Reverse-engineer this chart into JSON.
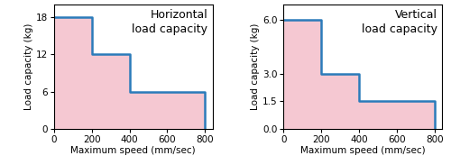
{
  "charts": [
    {
      "title": "Horizontal\nload capacity",
      "xlabel": "Maximum speed (mm/sec)",
      "ylabel": "Load capacity (kg)",
      "steps_x": [
        0,
        200,
        200,
        400,
        400,
        800,
        800
      ],
      "steps_y": [
        18,
        18,
        12,
        12,
        6,
        6,
        0
      ],
      "fill_x": [
        0,
        200,
        200,
        400,
        400,
        800,
        800,
        0
      ],
      "fill_y": [
        18,
        18,
        12,
        12,
        6,
        6,
        0,
        0
      ],
      "xlim": [
        0,
        840
      ],
      "ylim": [
        0,
        20
      ],
      "yticks": [
        0,
        6,
        12,
        18
      ],
      "xticks": [
        0,
        200,
        400,
        600,
        800
      ]
    },
    {
      "title": "Vertical\nload capacity",
      "xlabel": "Maximum speed (mm/sec)",
      "ylabel": "Load capacity (kg)",
      "steps_x": [
        0,
        200,
        200,
        400,
        400,
        800,
        800
      ],
      "steps_y": [
        6,
        6,
        3,
        3,
        1.5,
        1.5,
        0
      ],
      "fill_x": [
        0,
        200,
        200,
        400,
        400,
        800,
        800,
        0
      ],
      "fill_y": [
        6,
        6,
        3,
        3,
        1.5,
        1.5,
        0,
        0
      ],
      "xlim": [
        0,
        840
      ],
      "ylim": [
        0,
        6.8
      ],
      "yticks": [
        0,
        1.5,
        3,
        6
      ],
      "xticks": [
        0,
        200,
        400,
        600,
        800
      ]
    }
  ],
  "line_color": "#2b7bba",
  "fill_color": "#f5c8d2",
  "background_color": "#ffffff",
  "title_fontsize": 9,
  "label_fontsize": 7.5,
  "tick_fontsize": 7.5
}
